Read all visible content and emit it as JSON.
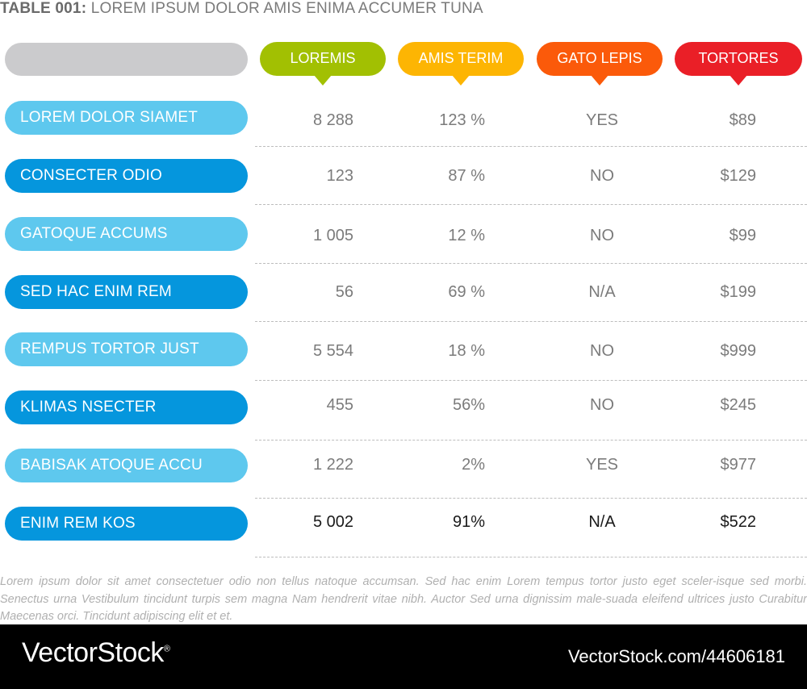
{
  "title": {
    "prefix": "TABLE 001:",
    "text": " LOREM IPSUM DOLOR AMIS ENIMA ACCUMER TUNA"
  },
  "columns": [
    {
      "label": "LOREMIS",
      "color": "#a2c002"
    },
    {
      "label": "AMIS TERIM",
      "color": "#fdb503"
    },
    {
      "label": "GATO LEPIS",
      "color": "#fb5a0a"
    },
    {
      "label": "TORTORES",
      "color": "#ea1f27"
    }
  ],
  "rows": [
    {
      "label": "LOREM DOLOR SIAMET",
      "loremis": "8 288",
      "amis_terim": "123 %",
      "gato_lepis": "YES",
      "tortores": "$89"
    },
    {
      "label": "CONSECTER ODIO",
      "loremis": "123",
      "amis_terim": "87 %",
      "gato_lepis": "NO",
      "tortores": "$129"
    },
    {
      "label": "GATOQUE ACCUMS",
      "loremis": "1 005",
      "amis_terim": "12 %",
      "gato_lepis": "NO",
      "tortores": "$99"
    },
    {
      "label": "SED HAC ENIM REM",
      "loremis": "56",
      "amis_terim": "69 %",
      "gato_lepis": "N/A",
      "tortores": "$199"
    },
    {
      "label": "REMPUS TORTOR JUST",
      "loremis": "5 554",
      "amis_terim": "18 %",
      "gato_lepis": "NO",
      "tortores": "$999"
    },
    {
      "label": "KLIMAS NSECTER",
      "loremis": "455",
      "amis_terim": "56%",
      "gato_lepis": "NO",
      "tortores": "$245"
    },
    {
      "label": "BABISAK ATOQUE ACCU",
      "loremis": "1 222",
      "amis_terim": "2%",
      "gato_lepis": "YES",
      "tortores": "$977"
    },
    {
      "label": "ENIM REM KOS",
      "loremis": "5 002",
      "amis_terim": "91%",
      "gato_lepis": "N/A",
      "tortores": "$522"
    }
  ],
  "colors": {
    "row_light": "#5ec8ee",
    "row_dark": "#0596dd",
    "header_blank": "#cbcbcd",
    "value_text": "#7b7b7b",
    "emphasis_text": "#1a1a1a"
  },
  "footnote": "Lorem ipsum dolor sit amet consectetuer odio non tellus natoque accumsan. Sed hac enim Lorem tempus tortor justo eget sceler-isque sed morbi. Senectus urna Vestibulum tincidunt turpis sem magna Nam hendrerit vitae nibh. Auctor Sed urna dignissim male-suada eleifend ultrices justo Curabitur Maecenas orci. Tincidunt adipiscing elit et et.",
  "footer": {
    "brand": "VectorStock",
    "reg": "®",
    "url": "VectorStock.com/44606181"
  }
}
